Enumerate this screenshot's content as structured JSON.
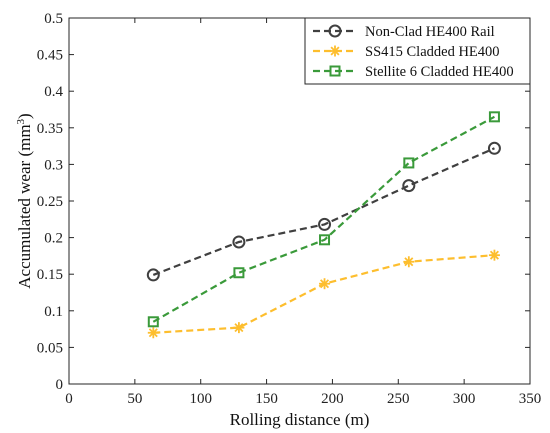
{
  "chart_data": {
    "type": "line",
    "xlabel": "Rolling distance (m)",
    "ylabel": "Accumulated wear  (mm",
    "ylabel_superscript": "3",
    "ylabel_close": ")",
    "xlim": [
      0,
      350
    ],
    "ylim": [
      0,
      0.5
    ],
    "xticks": [
      0,
      50,
      100,
      150,
      200,
      250,
      300,
      350
    ],
    "xtick_labels": [
      "0",
      "50",
      "100",
      "150",
      "200",
      "250",
      "300",
      "350"
    ],
    "yticks": [
      0,
      0.05,
      0.1,
      0.15,
      0.2,
      0.25,
      0.3,
      0.35,
      0.4,
      0.45,
      0.5
    ],
    "ytick_labels": [
      "0",
      "0.05",
      "0.1",
      "0.15",
      "0.2",
      "0.25",
      "0.3",
      "0.35",
      "0.4",
      "0.45",
      "0.5"
    ],
    "grid": false,
    "legend_position": "top-right",
    "series": [
      {
        "name": "Non-Clad HE400 Rail",
        "color": "#404040",
        "marker": "circle",
        "line_style": "dashed",
        "x": [
          64,
          129,
          194,
          258,
          323
        ],
        "y": [
          0.149,
          0.194,
          0.218,
          0.271,
          0.322
        ]
      },
      {
        "name": "SS415 Cladded HE400",
        "color": "#FDBE2E",
        "marker": "asterisk",
        "line_style": "dashed",
        "x": [
          64,
          129,
          194,
          258,
          323
        ],
        "y": [
          0.07,
          0.077,
          0.137,
          0.167,
          0.176
        ]
      },
      {
        "name": "Stellite 6 Cladded HE400",
        "color": "#3A9A3A",
        "marker": "square",
        "line_style": "dashed",
        "x": [
          64,
          129,
          194,
          258,
          323
        ],
        "y": [
          0.085,
          0.152,
          0.197,
          0.302,
          0.365
        ]
      }
    ]
  }
}
